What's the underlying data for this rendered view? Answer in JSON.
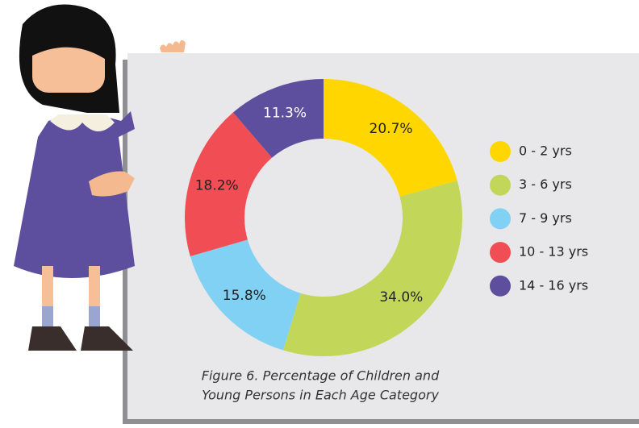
{
  "chart_data": {
    "type": "donut",
    "caption": [
      "Figure 6. Percentage of Children and",
      "Young Persons in Each Age Category"
    ],
    "categories": [
      "0 - 2 yrs",
      "3 - 6 yrs",
      "7 - 9 yrs",
      "10 - 13 yrs",
      "14 - 16 yrs"
    ],
    "values": [
      20.7,
      34.0,
      15.8,
      18.2,
      11.3
    ],
    "value_labels": [
      "20.7%",
      "34.0%",
      "15.8%",
      "18.2%",
      "11.3%"
    ],
    "colors": [
      "#FFD600",
      "#C2D75A",
      "#80D1F3",
      "#F04E54",
      "#5D4F9E"
    ],
    "legend": "right"
  }
}
